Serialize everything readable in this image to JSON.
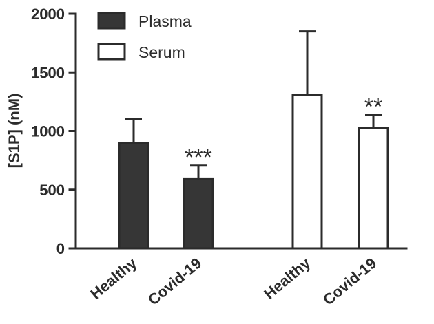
{
  "chart_data": {
    "type": "bar",
    "ylabel": "[S1P] (nM)",
    "ylim": [
      0,
      2000
    ],
    "yticks": [
      "0",
      "500",
      "1000",
      "1500",
      "2000"
    ],
    "grid": false,
    "legend_position": "top-left",
    "series": [
      {
        "name": "Plasma",
        "color": "#363636",
        "filled": true,
        "categories": [
          "Healthy",
          "Covid-19"
        ],
        "values": [
          900,
          590
        ],
        "errors": [
          200,
          115
        ],
        "annotations": [
          "",
          "***"
        ]
      },
      {
        "name": "Serum",
        "color": "#ffffff",
        "filled": false,
        "categories": [
          "Healthy",
          "Covid-19"
        ],
        "values": [
          1305,
          1025
        ],
        "errors": [
          545,
          110
        ],
        "annotations": [
          "",
          "**"
        ]
      }
    ]
  },
  "colors": {
    "ink": "#2b2b2b",
    "plasma_fill": "#363636",
    "serum_fill": "#ffffff"
  }
}
